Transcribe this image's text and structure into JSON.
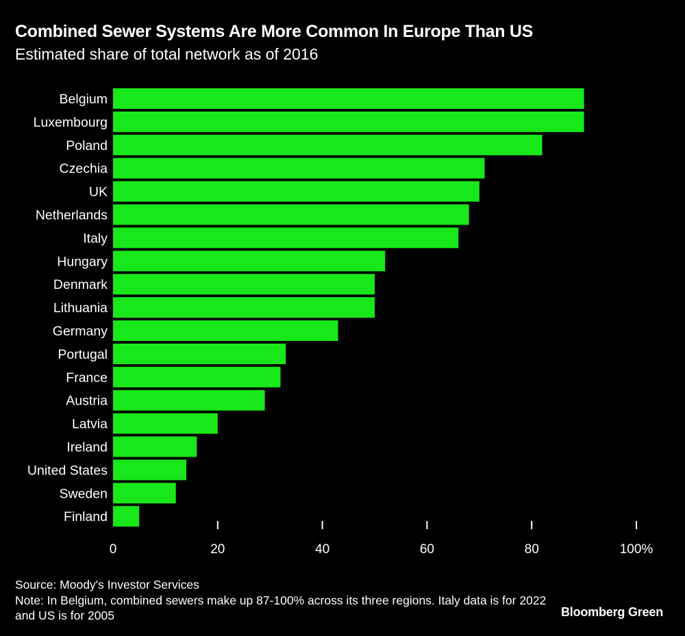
{
  "header": {
    "title": "Combined Sewer Systems Are More Common In Europe Than US",
    "subtitle": "Estimated share of total network as of 2016"
  },
  "footer": {
    "source": "Source: Moody's Investor Services",
    "note": "Note: In Belgium, combined sewers make up 87-100% across its three regions. Italy data is for 2022 and US is for 2005",
    "brand": "Bloomberg Green"
  },
  "chart_data": {
    "type": "bar",
    "orientation": "horizontal",
    "title": "Combined Sewer Systems Are More Common In Europe Than US",
    "subtitle": "Estimated share of total network as of 2016",
    "categories": [
      "Belgium",
      "Luxembourg",
      "Poland",
      "Czechia",
      "UK",
      "Netherlands",
      "Italy",
      "Hungary",
      "Denmark",
      "Lithuania",
      "Germany",
      "Portugal",
      "France",
      "Austria",
      "Latvia",
      "Ireland",
      "United States",
      "Sweden",
      "Finland"
    ],
    "values": [
      90,
      90,
      82,
      71,
      70,
      68,
      66,
      52,
      50,
      50,
      43,
      33,
      32,
      29,
      20,
      16,
      14,
      12,
      5
    ],
    "xlim": [
      0,
      100
    ],
    "xticks": [
      0,
      20,
      40,
      60,
      80,
      100
    ],
    "xtick_labels": [
      "0",
      "20",
      "40",
      "60",
      "80",
      "100%"
    ],
    "grid": false,
    "bar_color": "#18e81a",
    "background": "#000000"
  }
}
